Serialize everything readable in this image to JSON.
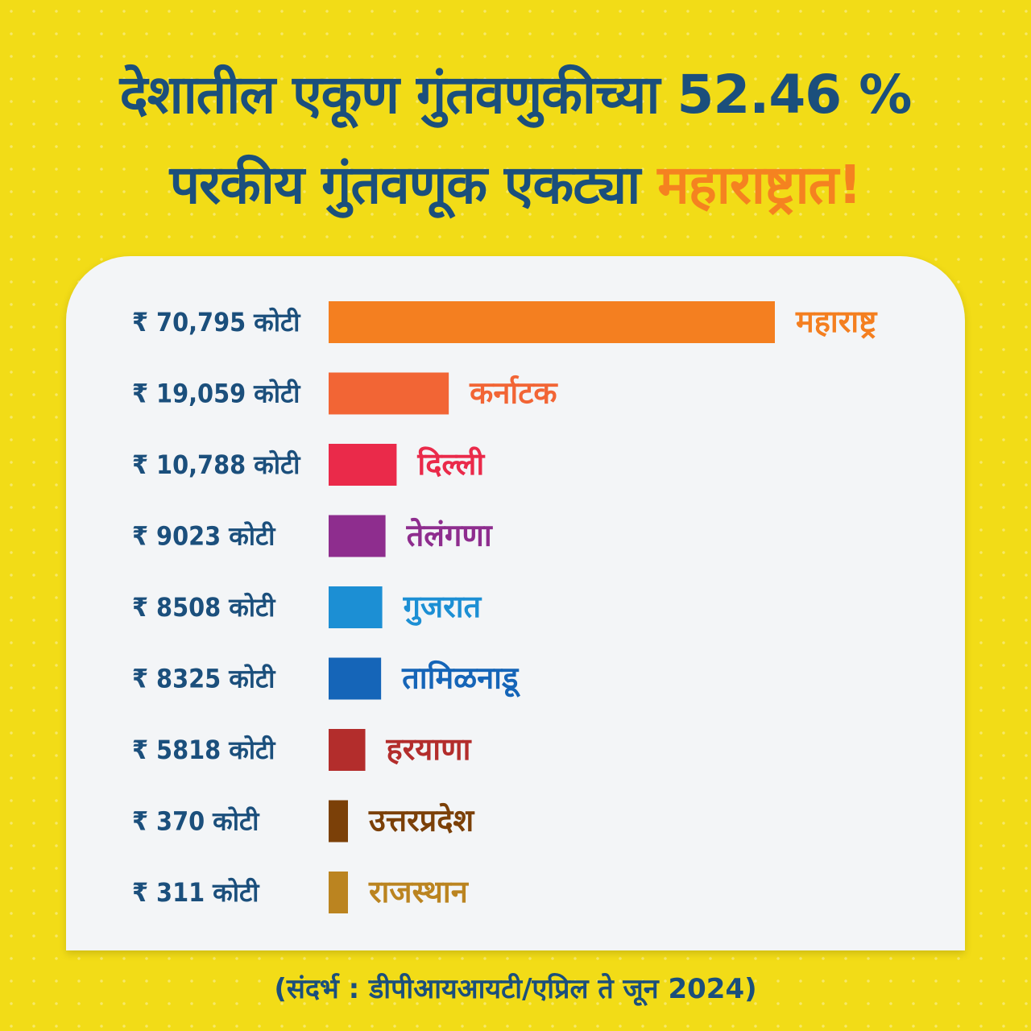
{
  "title": {
    "line1": "देशातील एकूण गुंतवणुकीच्या 52.46 %",
    "line2_prefix": "परकीय गुंतवणूक एकट्या ",
    "line2_highlight": "महाराष्ट्रात!"
  },
  "source": "(संदर्भ : डीपीआयआयटी/एप्रिल ते जून 2024)",
  "chart_data": {
    "type": "bar",
    "orientation": "horizontal",
    "unit": "कोटी",
    "categories": [
      "महाराष्ट्र",
      "कर्नाटक",
      "दिल्ली",
      "तेलंगणा",
      "गुजरात",
      "तामिळनाडू",
      "हरयाणा",
      "उत्तरप्रदेश",
      "राजस्थान"
    ],
    "values": [
      70795,
      19059,
      10788,
      9023,
      8508,
      8325,
      5818,
      370,
      311
    ],
    "value_labels": [
      "₹ 70,795 कोटी",
      "₹ 19,059 कोटी",
      "₹ 10,788 कोटी",
      "₹ 9023 कोटी",
      "₹ 8508 कोटी",
      "₹ 8325 कोटी",
      "₹ 5818 कोटी",
      "₹ 370 कोटी",
      "₹ 311 कोटी"
    ],
    "colors": [
      "#f47f20",
      "#f26535",
      "#ea2a4a",
      "#8e2d8e",
      "#1c8fd4",
      "#1565b8",
      "#b32d2c",
      "#7b4008",
      "#bb8420"
    ],
    "xlim": [
      0,
      70795
    ],
    "grid": false,
    "legend": "none"
  }
}
